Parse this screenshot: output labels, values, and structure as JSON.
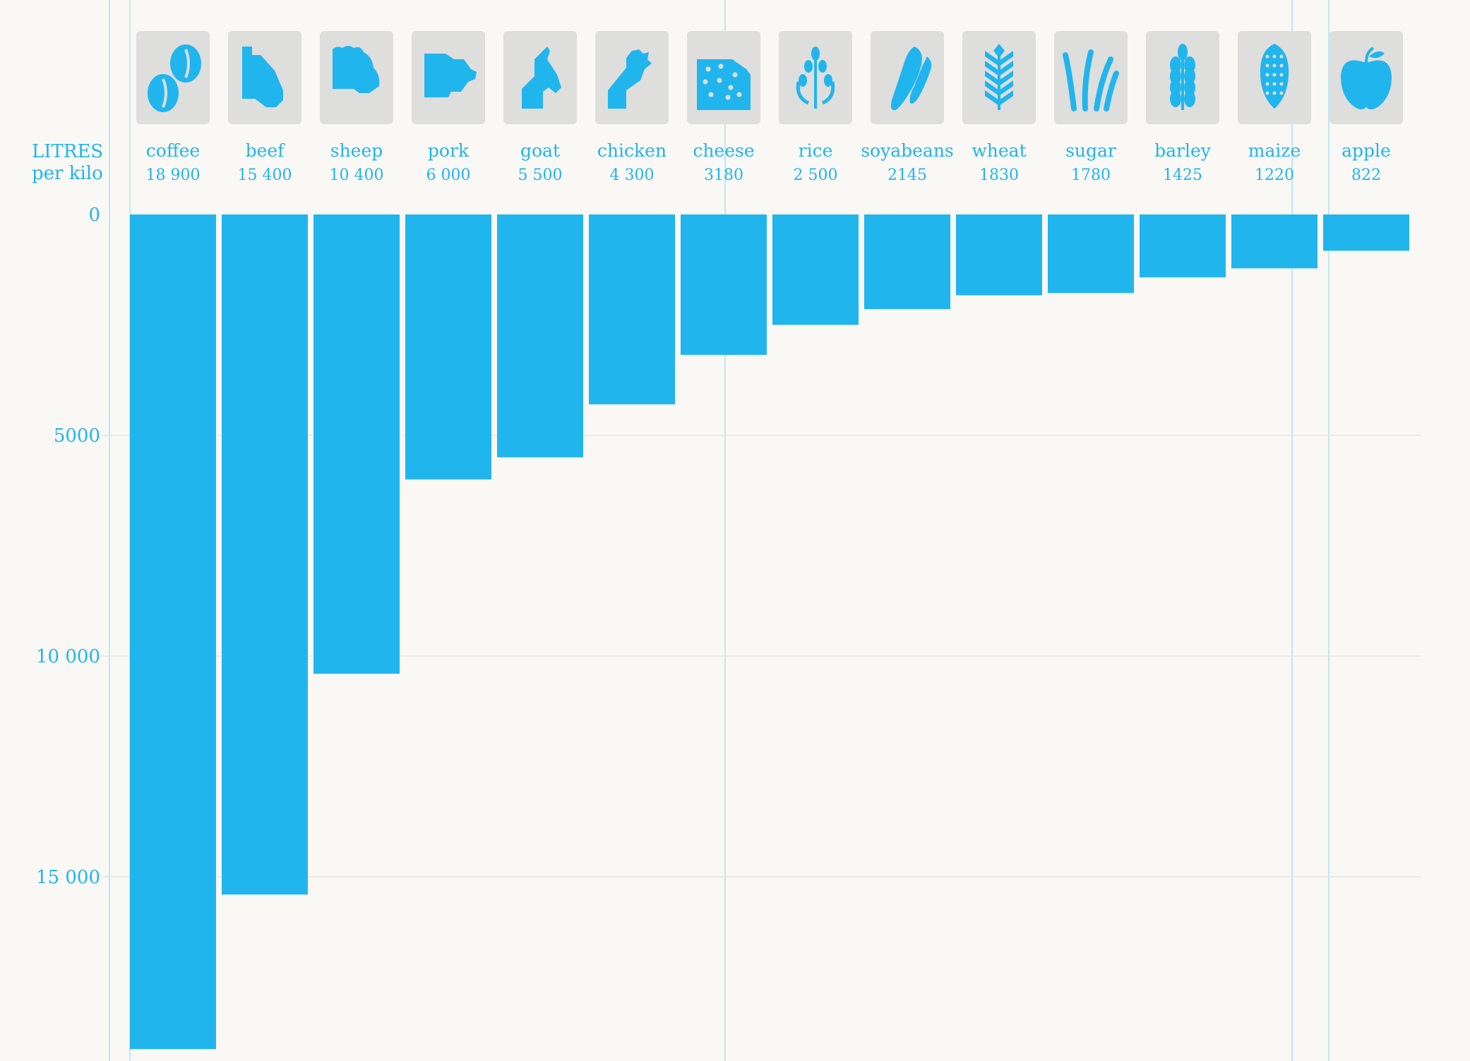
{
  "chart_data": {
    "type": "bar",
    "ylabel": [
      "LITRES",
      "per kilo"
    ],
    "yticks": [
      0,
      5000,
      10000,
      15000
    ],
    "ytick_labels": [
      "0",
      "5000",
      "10 000",
      "15 000"
    ],
    "ylim": [
      0,
      19000
    ],
    "y_axis_inverted": true,
    "grid": true,
    "bar_color": "#21b5ee",
    "icon_tile_color": "#dededd",
    "text_color": "#21b5ee",
    "categories": [
      "coffee",
      "beef",
      "sheep",
      "pork",
      "goat",
      "chicken",
      "cheese",
      "rice",
      "soyabeans",
      "wheat",
      "sugar",
      "barley",
      "maize",
      "apple"
    ],
    "value_labels": [
      "18 900",
      "15 400",
      "10 400",
      "6 000",
      "5 500",
      "4 300",
      "3180",
      "2 500",
      "2145",
      "1830",
      "1780",
      "1425",
      "1220",
      "822"
    ],
    "values": [
      18900,
      15400,
      10400,
      6000,
      5500,
      4300,
      3180,
      2500,
      2145,
      1830,
      1780,
      1425,
      1220,
      822
    ],
    "icons": [
      "coffee-beans-icon",
      "cow-icon",
      "sheep-icon",
      "pig-icon",
      "goat-icon",
      "chicken-icon",
      "cheese-icon",
      "rice-icon",
      "soyabean-icon",
      "wheat-icon",
      "sugarcane-icon",
      "barley-icon",
      "maize-icon",
      "apple-icon"
    ]
  }
}
